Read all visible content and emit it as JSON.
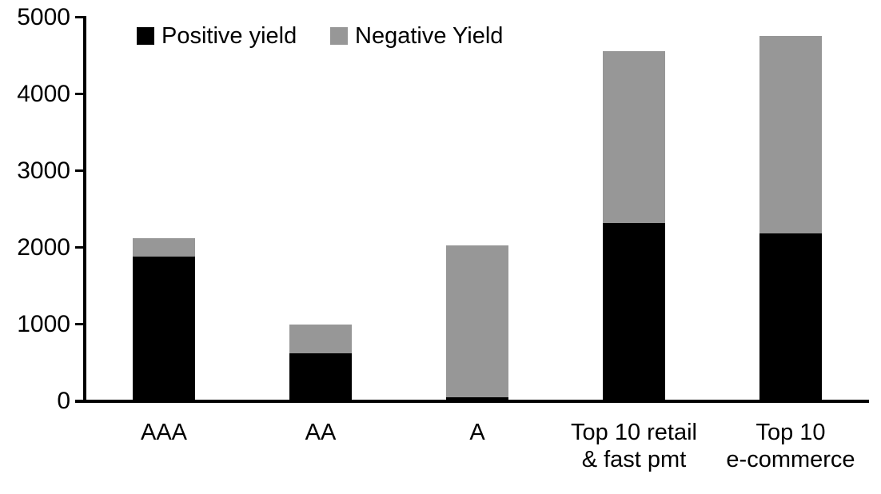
{
  "chart_data": {
    "type": "bar",
    "stacked": true,
    "title": "",
    "xlabel": "",
    "ylabel": "",
    "categories": [
      "AAA",
      "AA",
      "A",
      "Top 10 retail\n& fast pmt",
      "Top 10\ne-commerce"
    ],
    "series": [
      {
        "name": "Positive yield",
        "color": "#000000",
        "values": [
          1890,
          620,
          50,
          2325,
          2190
        ]
      },
      {
        "name": "Negative Yield",
        "color": "#979797",
        "values": [
          230,
          380,
          1980,
          2235,
          2570
        ]
      }
    ],
    "totals": [
      2120,
      1000,
      2030,
      4560,
      4760
    ],
    "ylim": [
      0,
      5000
    ],
    "yticks": [
      0,
      1000,
      2000,
      3000,
      4000,
      5000
    ],
    "grid": false,
    "legend_position": "top",
    "colors": {
      "positive": "#000000",
      "negative": "#979797",
      "axis": "#000000",
      "background": "#ffffff"
    }
  }
}
